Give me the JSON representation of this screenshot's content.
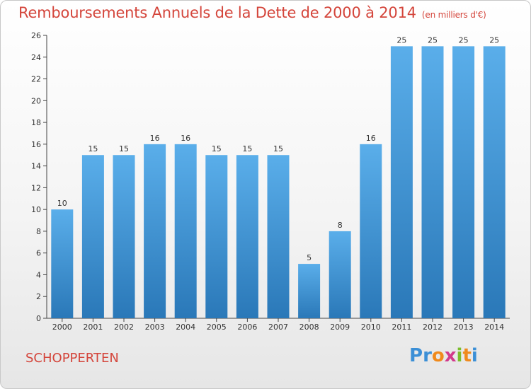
{
  "header": {
    "title": "Remboursements Annuels de la Dette de 2000 à 2014",
    "unit": "(en milliers d'€)"
  },
  "footer": {
    "commune": "SCHOPPERTEN",
    "logo_letters": [
      "P",
      "r",
      "o",
      "x",
      "i",
      "t",
      "i"
    ]
  },
  "colors": {
    "title": "#d4453b",
    "bar_top": "#5aaeea",
    "bar_bottom": "#2a78b8",
    "logo": [
      "#3b8fd6",
      "#3b8fd6",
      "#f08a1c",
      "#d23a8c",
      "#7bbd2c",
      "#f08a1c",
      "#3b8fd6"
    ]
  },
  "chart_data": {
    "type": "bar",
    "title": "Remboursements Annuels de la Dette de 2000 à 2014",
    "categories": [
      "2000",
      "2001",
      "2002",
      "2003",
      "2004",
      "2005",
      "2006",
      "2007",
      "2008",
      "2009",
      "2010",
      "2011",
      "2012",
      "2013",
      "2014"
    ],
    "values": [
      10,
      15,
      15,
      16,
      16,
      15,
      15,
      15,
      5,
      8,
      16,
      25,
      25,
      25,
      25
    ],
    "ylim": [
      0,
      26
    ],
    "yticks": [
      0,
      2,
      4,
      6,
      8,
      10,
      12,
      14,
      16,
      18,
      20,
      22,
      24,
      26
    ],
    "grid": false,
    "data_labels": true
  }
}
